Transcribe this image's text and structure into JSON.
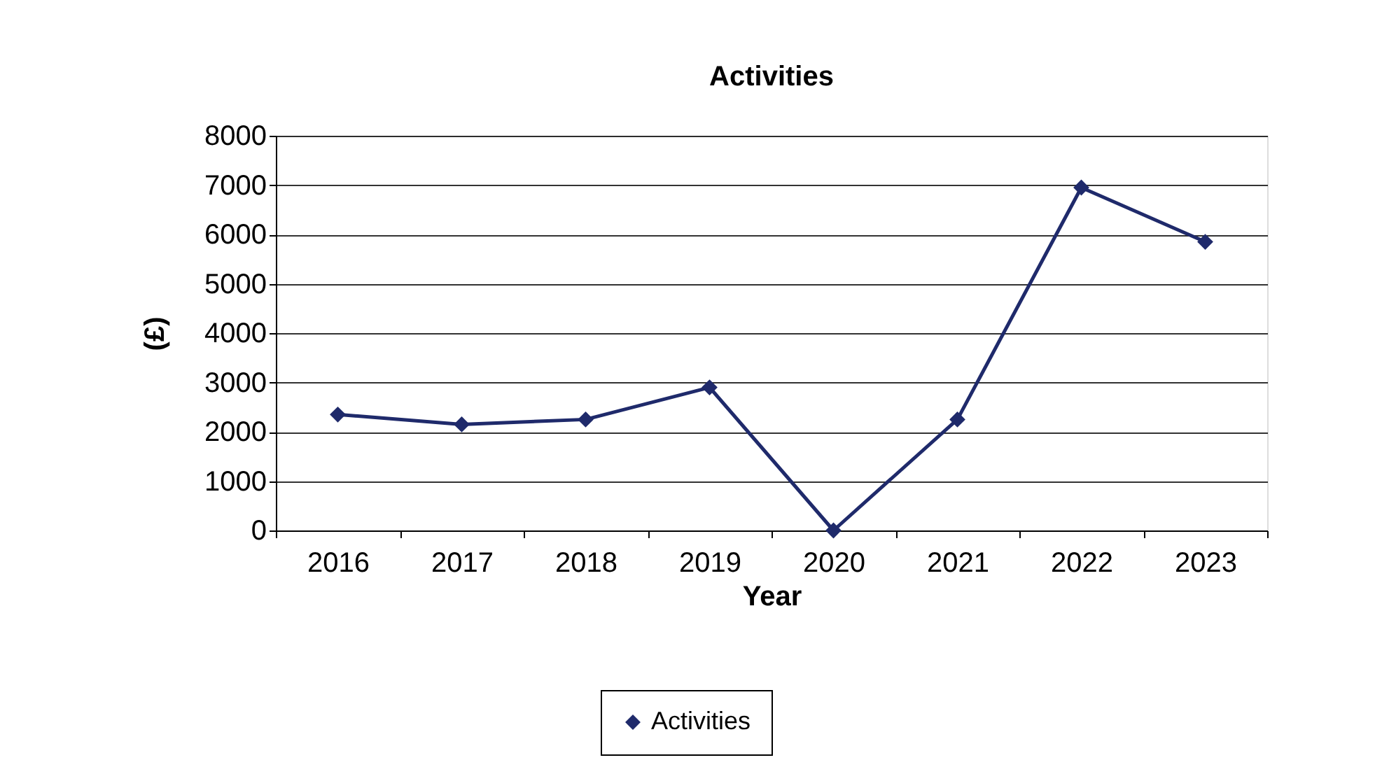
{
  "chart_data": {
    "type": "line",
    "title": "Activities",
    "xlabel": "Year",
    "ylabel": "(£)",
    "categories": [
      "2016",
      "2017",
      "2018",
      "2019",
      "2020",
      "2021",
      "2022",
      "2023"
    ],
    "series": [
      {
        "name": "Activities",
        "color": "#1f2a6b",
        "values": [
          2350,
          2150,
          2250,
          2900,
          0,
          2250,
          6950,
          5850
        ]
      }
    ],
    "ylim": [
      0,
      8000
    ],
    "yticks": [
      0,
      1000,
      2000,
      3000,
      4000,
      5000,
      6000,
      7000,
      8000
    ],
    "grid": "y",
    "legend": "bottom",
    "marker": "diamond",
    "line_style": "solid"
  }
}
